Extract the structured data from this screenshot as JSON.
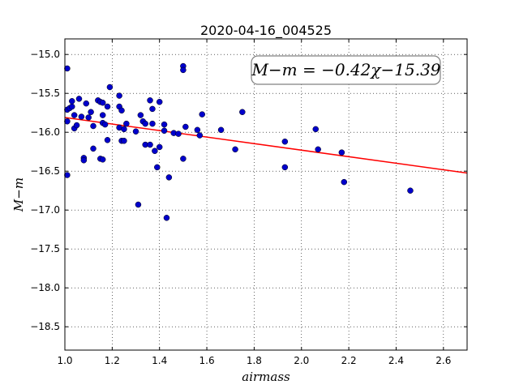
{
  "chart_data": {
    "type": "scatter",
    "title": "2020-04-16_004525",
    "xlabel": "airmass",
    "ylabel": "M−m",
    "xlim": [
      1.0,
      2.7
    ],
    "ylim": [
      -18.8,
      -14.8
    ],
    "y_inverted": true,
    "grid": true,
    "xticks": [
      "1.0",
      "1.2",
      "1.4",
      "1.6",
      "1.8",
      "2.0",
      "2.2",
      "2.4",
      "2.6"
    ],
    "yticks": [
      "−15.0",
      "−15.5",
      "−16.0",
      "−16.5",
      "−17.0",
      "−17.5",
      "−18.0",
      "−18.5"
    ],
    "annotation": "M−m = −0.42χ−15.39",
    "fit": {
      "slope": -0.42,
      "intercept": -15.39,
      "color": "#ff0000"
    },
    "point_color": "#0000cc",
    "points": [
      [
        1.01,
        -15.18
      ],
      [
        1.01,
        -15.71
      ],
      [
        1.01,
        -16.55
      ],
      [
        1.01,
        -15.86
      ],
      [
        1.02,
        -15.69
      ],
      [
        1.03,
        -15.67
      ],
      [
        1.03,
        -15.6
      ],
      [
        1.04,
        -15.78
      ],
      [
        1.04,
        -15.95
      ],
      [
        1.05,
        -15.91
      ],
      [
        1.06,
        -15.57
      ],
      [
        1.07,
        -15.8
      ],
      [
        1.08,
        -16.33
      ],
      [
        1.08,
        -16.36
      ],
      [
        1.09,
        -15.63
      ],
      [
        1.1,
        -15.81
      ],
      [
        1.11,
        -15.74
      ],
      [
        1.12,
        -15.92
      ],
      [
        1.12,
        -16.21
      ],
      [
        1.14,
        -15.59
      ],
      [
        1.15,
        -15.61
      ],
      [
        1.15,
        -16.34
      ],
      [
        1.16,
        -15.62
      ],
      [
        1.16,
        -15.78
      ],
      [
        1.16,
        -15.88
      ],
      [
        1.16,
        -16.35
      ],
      [
        1.17,
        -15.9
      ],
      [
        1.18,
        -16.1
      ],
      [
        1.18,
        -15.67
      ],
      [
        1.19,
        -15.42
      ],
      [
        1.23,
        -15.53
      ],
      [
        1.23,
        -15.67
      ],
      [
        1.23,
        -15.94
      ],
      [
        1.24,
        -16.11
      ],
      [
        1.24,
        -15.72
      ],
      [
        1.25,
        -16.11
      ],
      [
        1.25,
        -15.96
      ],
      [
        1.26,
        -15.89
      ],
      [
        1.3,
        -15.99
      ],
      [
        1.31,
        -16.93
      ],
      [
        1.32,
        -15.78
      ],
      [
        1.33,
        -15.86
      ],
      [
        1.34,
        -15.89
      ],
      [
        1.34,
        -16.16
      ],
      [
        1.36,
        -15.59
      ],
      [
        1.36,
        -16.16
      ],
      [
        1.37,
        -15.89
      ],
      [
        1.37,
        -15.7
      ],
      [
        1.38,
        -16.24
      ],
      [
        1.39,
        -16.45
      ],
      [
        1.4,
        -15.61
      ],
      [
        1.4,
        -16.19
      ],
      [
        1.42,
        -15.98
      ],
      [
        1.42,
        -15.9
      ],
      [
        1.43,
        -17.1
      ],
      [
        1.44,
        -16.58
      ],
      [
        1.46,
        -16.01
      ],
      [
        1.48,
        -16.02
      ],
      [
        1.5,
        -16.34
      ],
      [
        1.5,
        -15.15
      ],
      [
        1.5,
        -15.2
      ],
      [
        1.51,
        -15.93
      ],
      [
        1.56,
        -15.97
      ],
      [
        1.57,
        -16.04
      ],
      [
        1.58,
        -15.77
      ],
      [
        1.66,
        -15.97
      ],
      [
        1.72,
        -16.22
      ],
      [
        1.75,
        -15.74
      ],
      [
        1.93,
        -16.12
      ],
      [
        1.93,
        -16.45
      ],
      [
        2.06,
        -15.96
      ],
      [
        2.07,
        -16.22
      ],
      [
        2.17,
        -16.26
      ],
      [
        2.18,
        -16.64
      ],
      [
        2.46,
        -16.75
      ]
    ]
  }
}
